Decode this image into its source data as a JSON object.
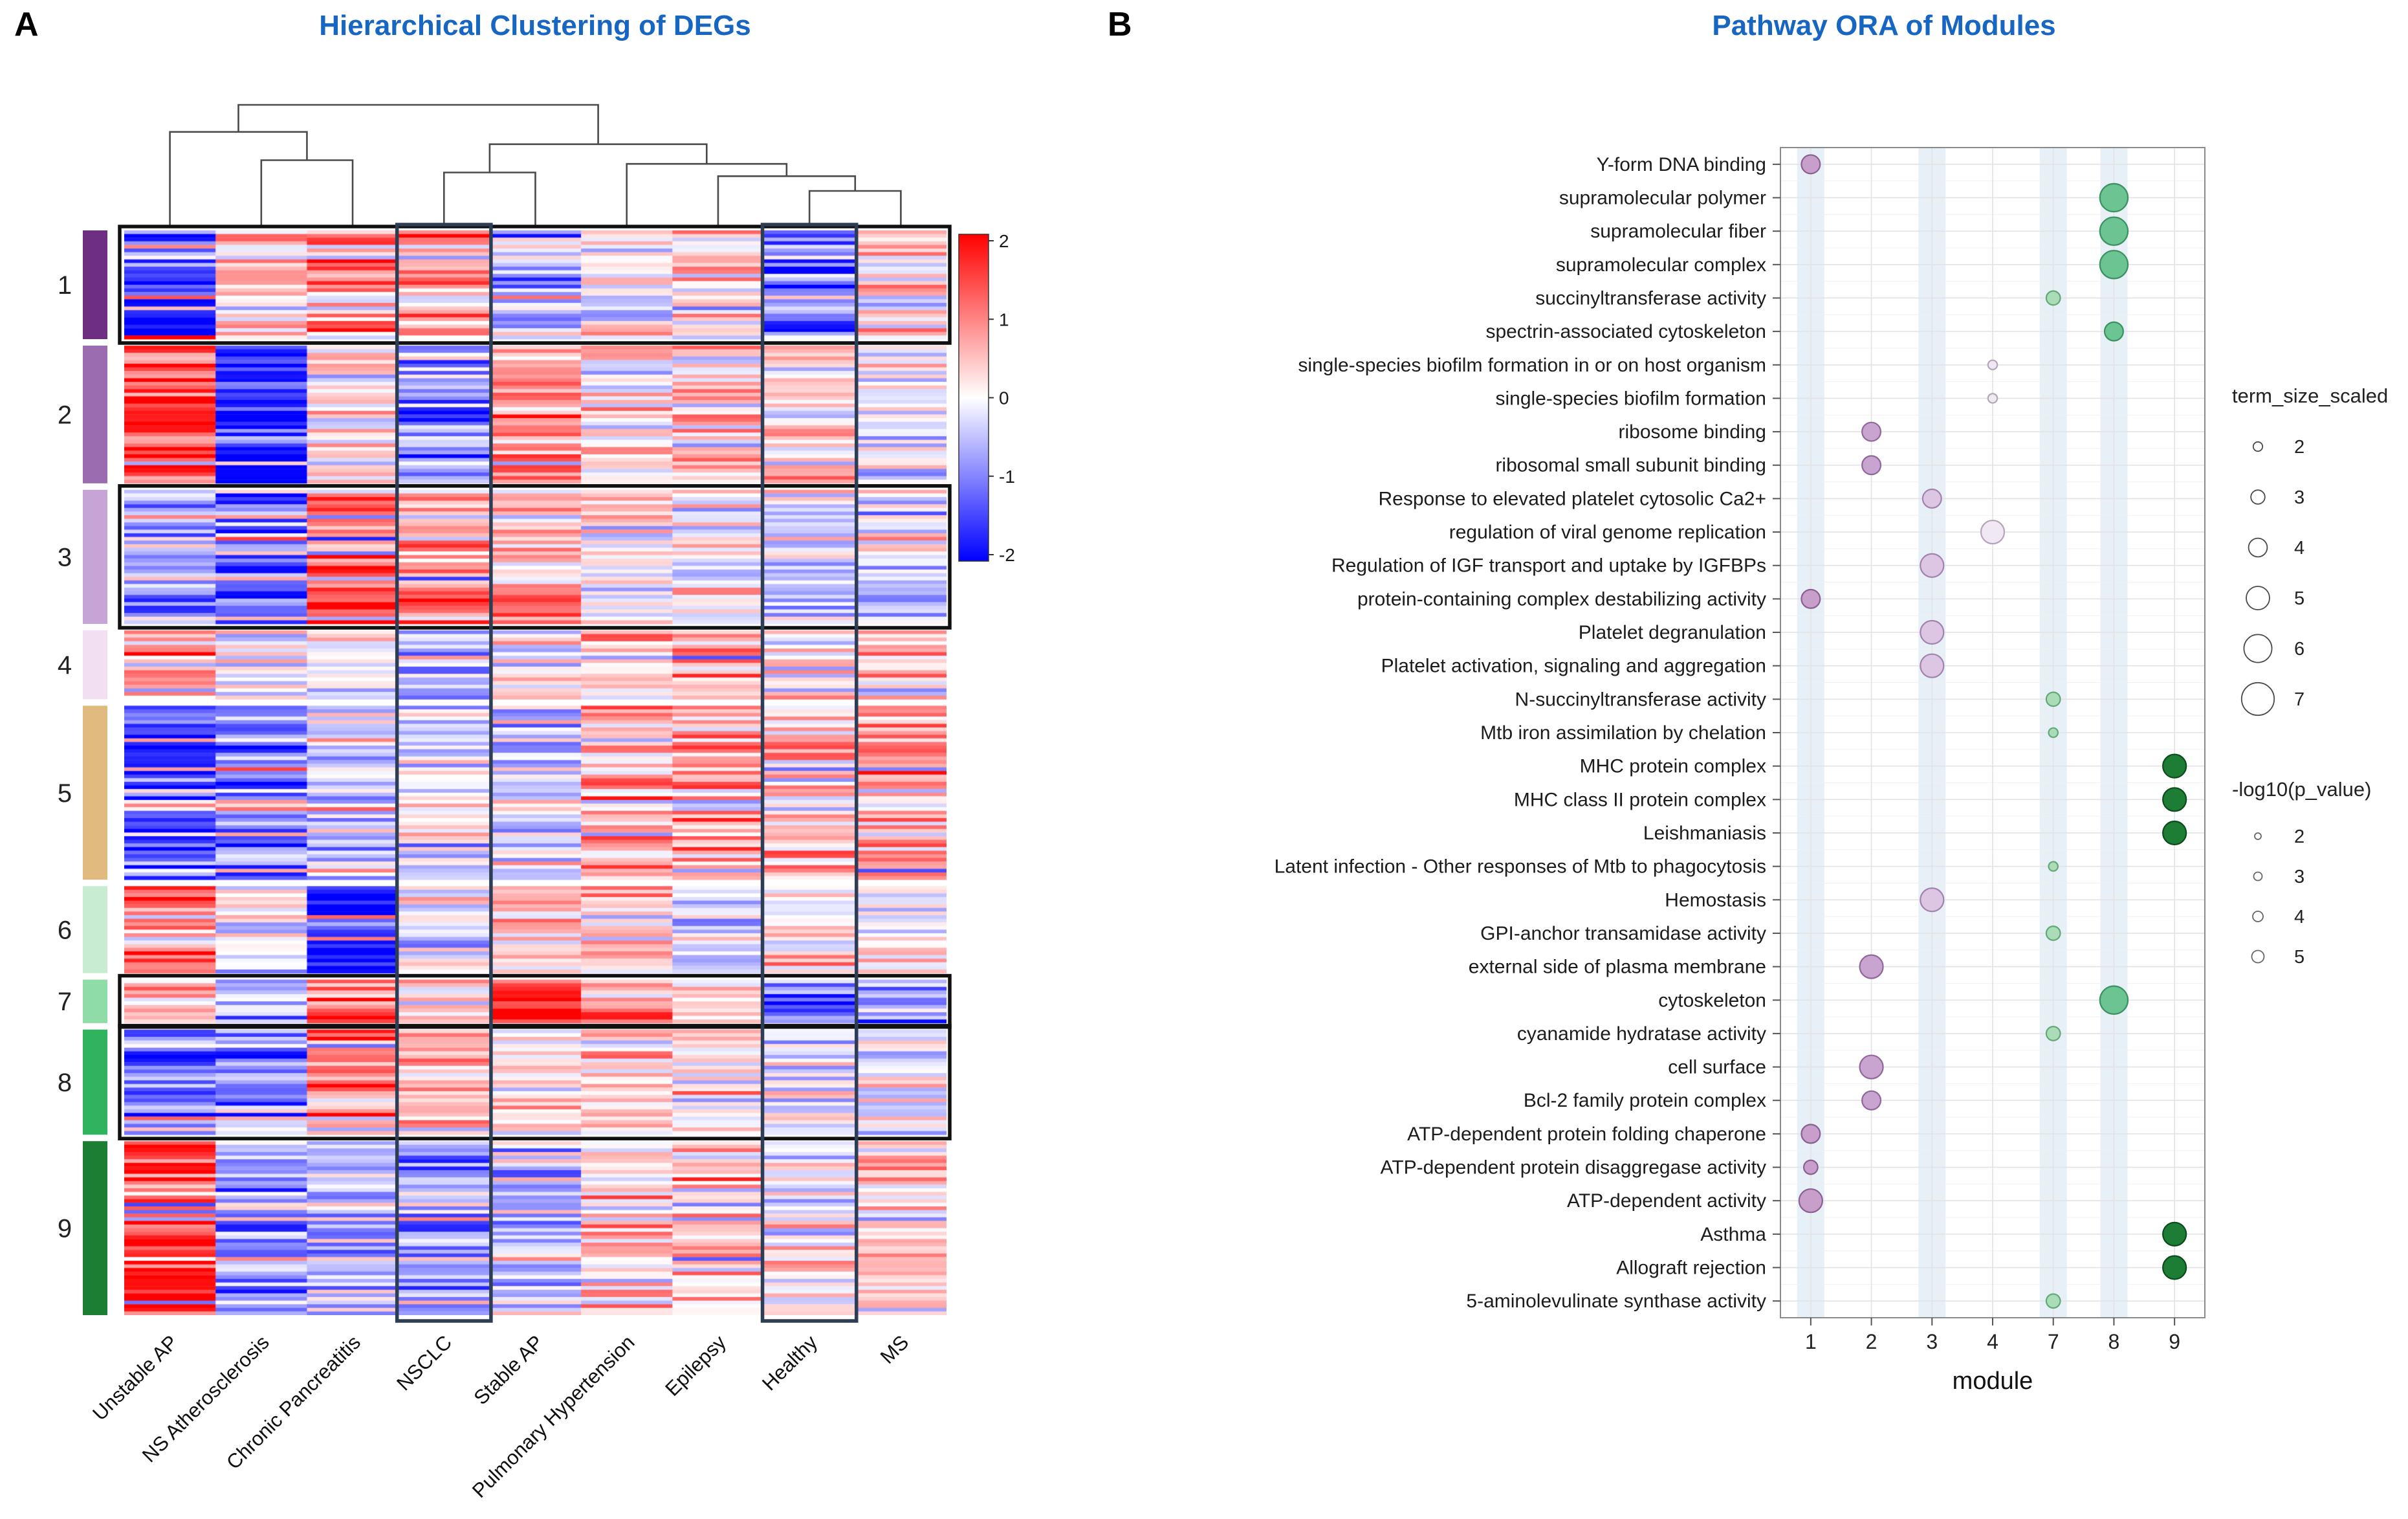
{
  "figure": {
    "panel_a_label": "A",
    "panel_b_label": "B",
    "title_color": "#1766c2"
  },
  "chart_data": [
    {
      "type": "heatmap",
      "title": "Hierarchical Clustering of DEGs",
      "columns": [
        "Unstable AP",
        "NS Atherosclerosis",
        "Chronic Pancreatitis",
        "NSCLC",
        "Stable AP",
        "Pulmonary Hypertension",
        "Epilepsy",
        "Healthy",
        "MS"
      ],
      "value_range": [
        -2,
        2
      ],
      "colorbar_ticks": [
        "2",
        "1",
        "0",
        "-1",
        "-2"
      ],
      "colors": {
        "max": "#ff0000",
        "mid": "#ffffff",
        "min": "#0000ff"
      },
      "modules": [
        {
          "id": "1",
          "color": "#6e2f82",
          "n_rows": 30,
          "column_means": [
            -1.7,
            0.5,
            1.2,
            0.9,
            -0.7,
            0.1,
            0.5,
            -1.3,
            0.2
          ]
        },
        {
          "id": "2",
          "color": "#9c6cb0",
          "n_rows": 38,
          "column_means": [
            1.5,
            -1.9,
            0.1,
            -0.9,
            0.9,
            0.2,
            0.3,
            0.3,
            -0.2
          ]
        },
        {
          "id": "3",
          "color": "#c6a5d6",
          "n_rows": 37,
          "column_means": [
            -0.8,
            -1.4,
            1.3,
            1.1,
            0.7,
            0.1,
            0.1,
            -0.5,
            -0.5
          ]
        },
        {
          "id": "4",
          "color": "#f3dff2",
          "n_rows": 19,
          "column_means": [
            0.9,
            0.1,
            0.0,
            -0.6,
            0.2,
            0.4,
            0.5,
            0.0,
            0.5
          ]
        },
        {
          "id": "5",
          "color": "#e0ba7e",
          "n_rows": 48,
          "column_means": [
            -1.8,
            -1.3,
            -0.5,
            -0.3,
            -0.5,
            0.9,
            1.0,
            0.4,
            0.9
          ]
        },
        {
          "id": "6",
          "color": "#c8ecd2",
          "n_rows": 24,
          "column_means": [
            1.2,
            0.0,
            -2.0,
            0.0,
            0.3,
            0.5,
            -0.4,
            0.1,
            0.2
          ]
        },
        {
          "id": "7",
          "color": "#8fdca6",
          "n_rows": 12,
          "column_means": [
            0.4,
            -0.6,
            1.0,
            0.2,
            1.8,
            0.7,
            0.2,
            -1.2,
            -0.9
          ]
        },
        {
          "id": "8",
          "color": "#2fb35e",
          "n_rows": 29,
          "column_means": [
            -1.4,
            -1.0,
            1.3,
            0.7,
            0.1,
            0.6,
            0.2,
            -0.3,
            0.0
          ]
        },
        {
          "id": "9",
          "color": "#1b7e33",
          "n_rows": 48,
          "column_means": [
            1.8,
            -0.8,
            -0.6,
            -1.0,
            -0.5,
            0.3,
            0.5,
            0.1,
            0.4
          ]
        }
      ],
      "highlighted_modules": [
        "1",
        "3",
        "7",
        "8"
      ],
      "highlighted_columns": [
        "NSCLC",
        "Healthy"
      ],
      "dendrogram_merges": [
        {
          "a": "L1",
          "b": "L2",
          "h": 0.55
        },
        {
          "a": "L0",
          "b": "M0",
          "h": 0.78
        },
        {
          "a": "L7",
          "b": "L8",
          "h": 0.3
        },
        {
          "a": "L6",
          "b": "M2",
          "h": 0.42
        },
        {
          "a": "L5",
          "b": "M3",
          "h": 0.52
        },
        {
          "a": "L3",
          "b": "L4",
          "h": 0.45
        },
        {
          "a": "M5",
          "b": "M4",
          "h": 0.68
        },
        {
          "a": "M1",
          "b": "M6",
          "h": 1.0
        }
      ]
    },
    {
      "type": "scatter",
      "title": "Pathway ORA of Modules",
      "xlabel": "module",
      "x": [
        "1",
        "2",
        "3",
        "4",
        "7",
        "8",
        "9"
      ],
      "shaded_modules": [
        "1",
        "3",
        "7",
        "8"
      ],
      "module_colors": {
        "1": {
          "fill": "#c79fca",
          "stroke": "#8a5f92"
        },
        "2": {
          "fill": "#c9a4d1",
          "stroke": "#8f689a"
        },
        "3": {
          "fill": "#dcc6e4",
          "stroke": "#a183ae"
        },
        "4": {
          "fill": "#f0e8f2",
          "stroke": "#b3a6b8"
        },
        "7": {
          "fill": "#a9dcb7",
          "stroke": "#63a878"
        },
        "8": {
          "fill": "#6cc492",
          "stroke": "#3a9162"
        },
        "9": {
          "fill": "#1d7d35",
          "stroke": "#0c4b1e"
        }
      },
      "terms": [
        {
          "label": "Y-form DNA binding",
          "module": "1",
          "size": 4
        },
        {
          "label": "supramolecular polymer",
          "module": "8",
          "size": 6
        },
        {
          "label": "supramolecular fiber",
          "module": "8",
          "size": 6
        },
        {
          "label": "supramolecular complex",
          "module": "8",
          "size": 6
        },
        {
          "label": "succinyltransferase activity",
          "module": "7",
          "size": 3
        },
        {
          "label": "spectrin-associated cytoskeleton",
          "module": "8",
          "size": 4
        },
        {
          "label": "single-species biofilm formation in or on host organism",
          "module": "4",
          "size": 2
        },
        {
          "label": "single-species biofilm formation",
          "module": "4",
          "size": 2
        },
        {
          "label": "ribosome binding",
          "module": "2",
          "size": 4
        },
        {
          "label": "ribosomal small subunit binding",
          "module": "2",
          "size": 4
        },
        {
          "label": "Response to elevated platelet cytosolic Ca2+",
          "module": "3",
          "size": 4
        },
        {
          "label": "regulation of viral genome replication",
          "module": "4",
          "size": 5
        },
        {
          "label": "Regulation of IGF transport and uptake by IGFBPs",
          "module": "3",
          "size": 5
        },
        {
          "label": "protein-containing complex destabilizing activity",
          "module": "1",
          "size": 4
        },
        {
          "label": "Platelet degranulation",
          "module": "3",
          "size": 5
        },
        {
          "label": "Platelet activation, signaling and aggregation",
          "module": "3",
          "size": 5
        },
        {
          "label": "N-succinyltransferase activity",
          "module": "7",
          "size": 3
        },
        {
          "label": "Mtb iron assimilation by chelation",
          "module": "7",
          "size": 2
        },
        {
          "label": "MHC protein complex",
          "module": "9",
          "size": 5
        },
        {
          "label": "MHC class II protein complex",
          "module": "9",
          "size": 5
        },
        {
          "label": "Leishmaniasis",
          "module": "9",
          "size": 5
        },
        {
          "label": "Latent infection - Other responses of Mtb to phagocytosis",
          "module": "7",
          "size": 2
        },
        {
          "label": "Hemostasis",
          "module": "3",
          "size": 5
        },
        {
          "label": "GPI-anchor transamidase activity",
          "module": "7",
          "size": 3
        },
        {
          "label": "external side of plasma membrane",
          "module": "2",
          "size": 5
        },
        {
          "label": "cytoskeleton",
          "module": "8",
          "size": 6
        },
        {
          "label": "cyanamide hydratase activity",
          "module": "7",
          "size": 3
        },
        {
          "label": "cell surface",
          "module": "2",
          "size": 5
        },
        {
          "label": "Bcl-2 family protein complex",
          "module": "2",
          "size": 4
        },
        {
          "label": "ATP-dependent protein folding chaperone",
          "module": "1",
          "size": 4
        },
        {
          "label": "ATP-dependent protein disaggregase activity",
          "module": "1",
          "size": 3
        },
        {
          "label": "ATP-dependent activity",
          "module": "1",
          "size": 5
        },
        {
          "label": "Asthma",
          "module": "9",
          "size": 5
        },
        {
          "label": "Allograft rejection",
          "module": "9",
          "size": 5
        },
        {
          "label": "5-aminolevulinate synthase activity",
          "module": "7",
          "size": 3
        }
      ],
      "size_legend": {
        "title": "term_size_scaled",
        "values": [
          2,
          3,
          4,
          5,
          6,
          7
        ]
      },
      "pvalue_legend": {
        "title": "-log10(p_value)",
        "values": [
          2,
          3,
          4,
          5
        ]
      }
    }
  ]
}
